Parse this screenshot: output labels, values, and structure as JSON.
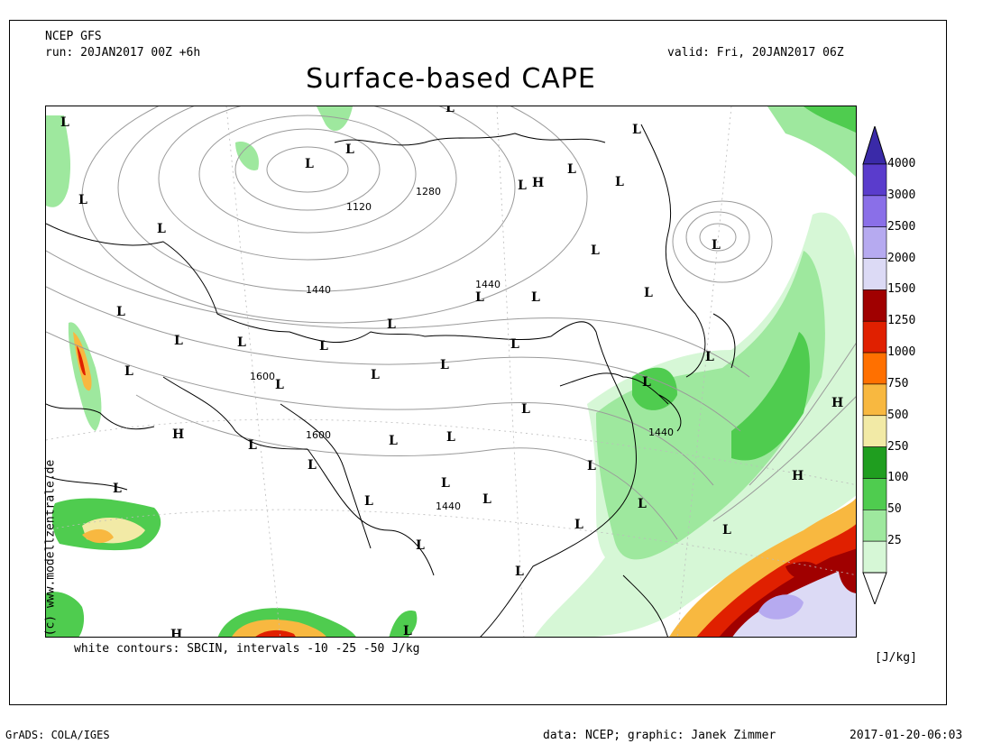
{
  "header": {
    "model": "NCEP GFS",
    "run": "run: 20JAN2017 00Z +6h",
    "valid": "valid: Fri, 20JAN2017 06Z",
    "title": "Surface-based CAPE"
  },
  "legend": {
    "unit": "[J/kg]",
    "levels": [
      "4000",
      "3000",
      "2500",
      "2000",
      "1500",
      "1250",
      "1000",
      "750",
      "500",
      "250",
      "100",
      "50",
      "25"
    ],
    "colors": [
      "#5a3ccc",
      "#8a6fe8",
      "#b6aaf0",
      "#dcdaf5",
      "#a00000",
      "#e02000",
      "#ff7000",
      "#f8b840",
      "#f2eaa6",
      "#1f9e1f",
      "#4fcc4f",
      "#9ee89e",
      "#d6f7d6"
    ]
  },
  "footer_note": "white contours: SBCIN, intervals -10 -25 -50 J/kg",
  "credit_vertical": "(c) www.modellzentrale.de",
  "bottom": {
    "left": "GrADS: COLA/IGES",
    "center": "data: NCEP; graphic: Janek Zimmer",
    "right": "2017-01-20-06:03"
  },
  "map": {
    "contour_labels": [
      "1120",
      "1280",
      "1440",
      "1440",
      "1600",
      "1600",
      "1440",
      "1440"
    ],
    "pressure_centers": [
      "L",
      "L",
      "L",
      "L",
      "L",
      "L",
      "L",
      "L",
      "L",
      "L",
      "L",
      "L",
      "L",
      "L",
      "L",
      "L",
      "L",
      "L",
      "L",
      "L",
      "L",
      "L",
      "L",
      "L",
      "L",
      "L",
      "L",
      "L",
      "L",
      "L",
      "L",
      "L",
      "L",
      "L",
      "H",
      "H",
      "H",
      "H",
      "H",
      "H",
      "L",
      "L",
      "L",
      "L",
      "L",
      "L",
      "L",
      "L",
      "L",
      "H",
      "L",
      "H"
    ]
  }
}
